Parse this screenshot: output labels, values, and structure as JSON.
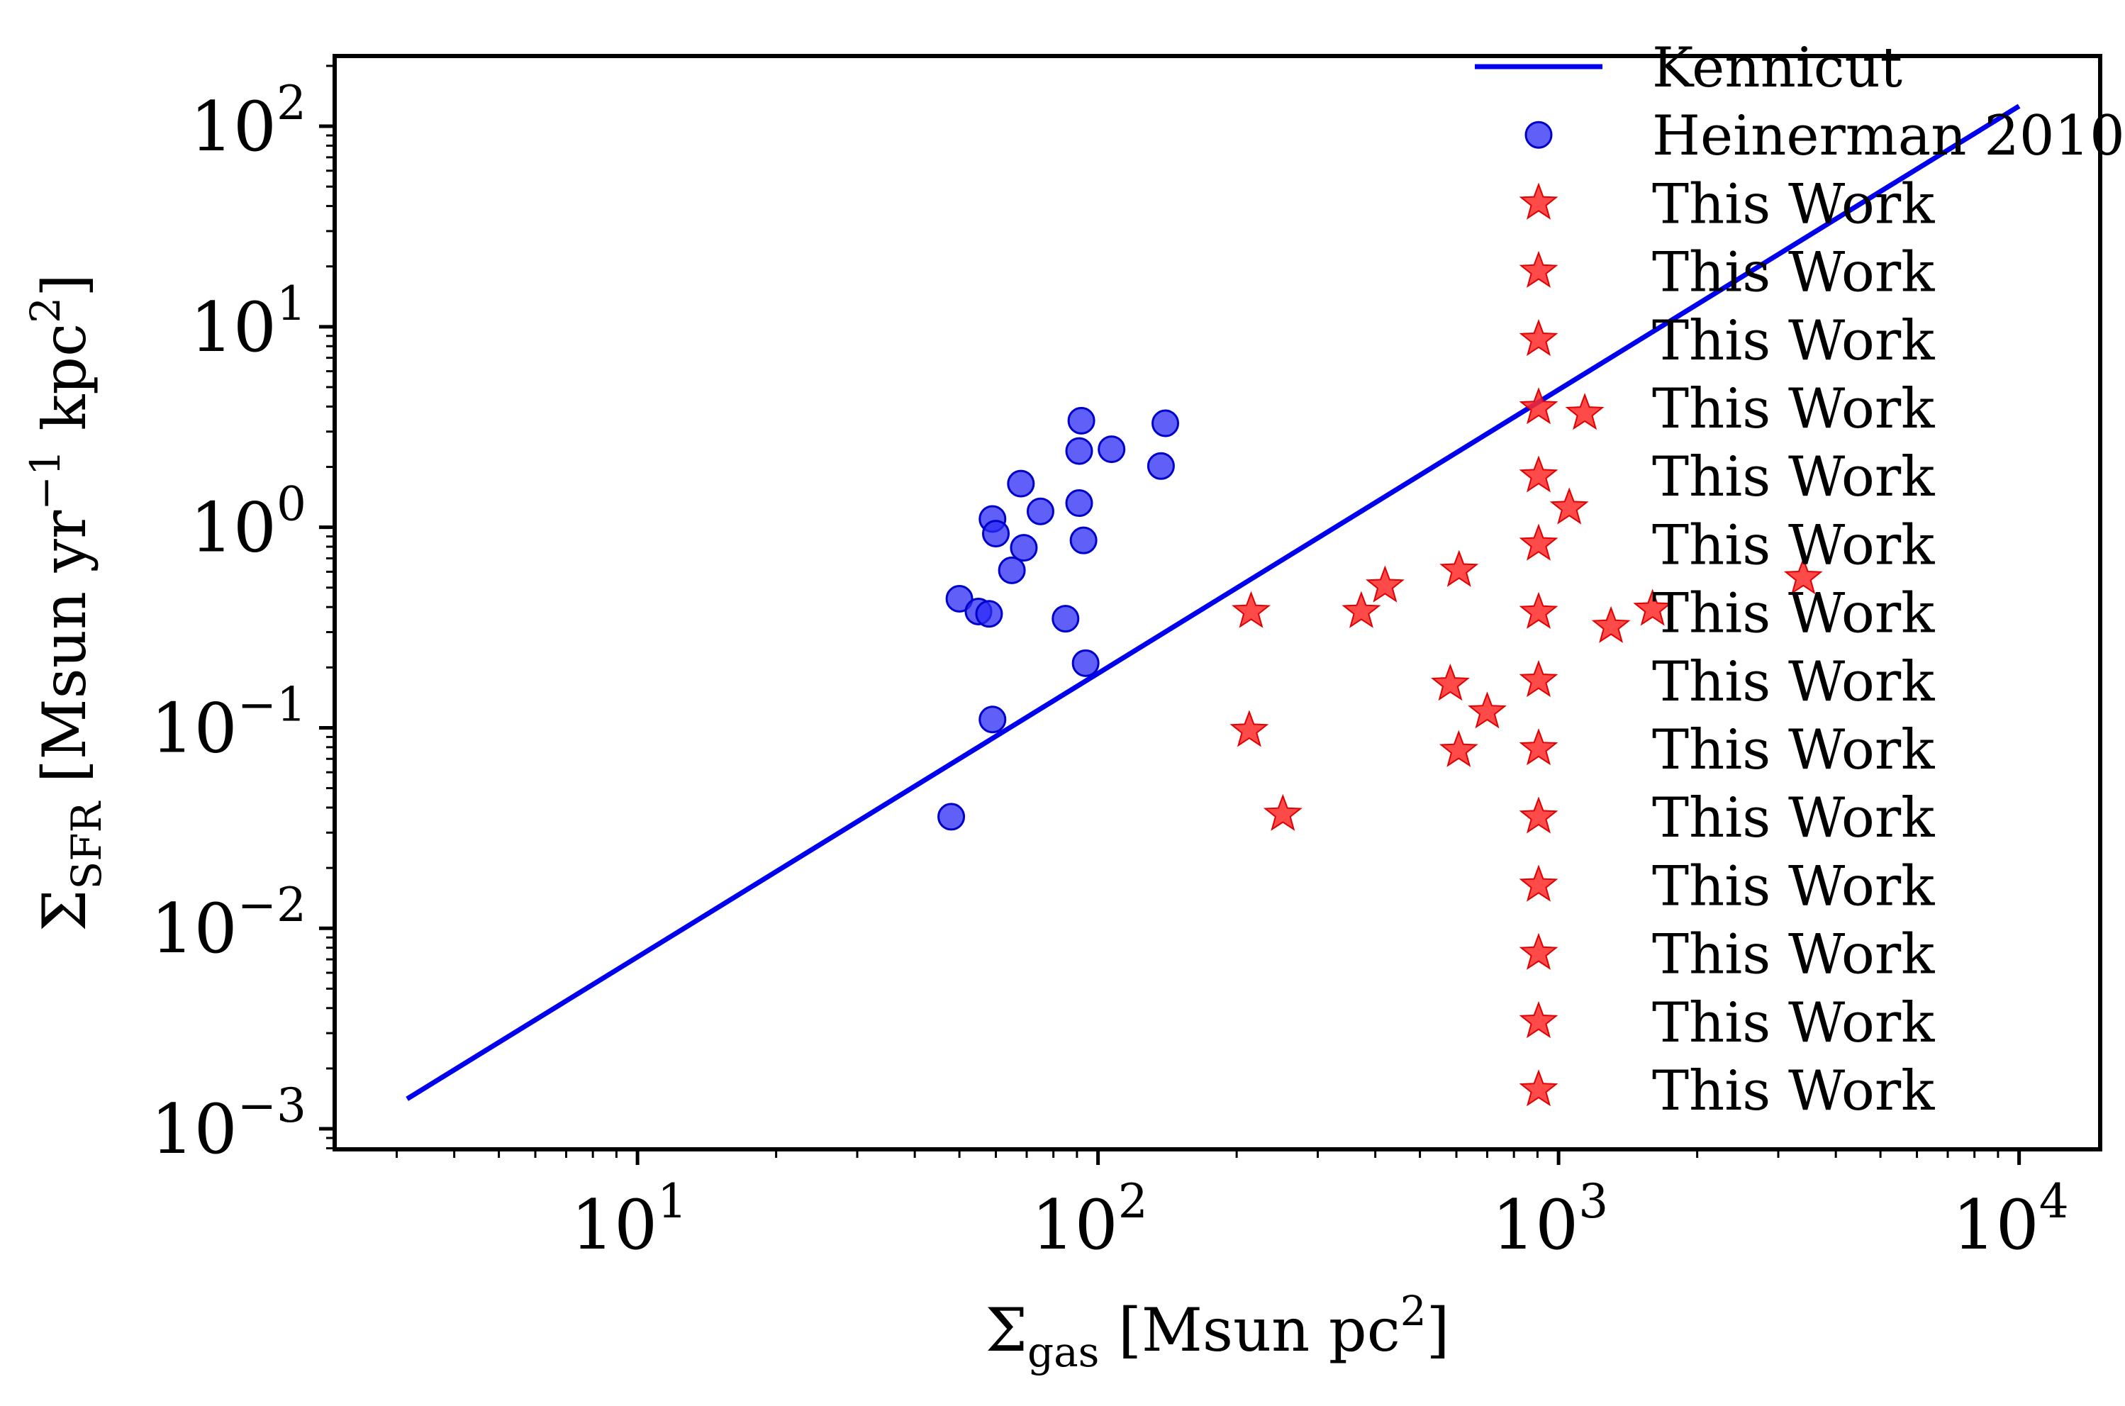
{
  "chart_data": {
    "type": "scatter",
    "x_scale": "log",
    "y_scale": "log",
    "xlim": [
      2.2,
      15000
    ],
    "ylim": [
      0.00079,
      224
    ],
    "xlabel": {
      "sym": "Σ",
      "sub": "gas",
      "rest": " [Msun pc",
      "sup": "2",
      "end": "]"
    },
    "ylabel": {
      "sym": "Σ",
      "sub": "SFR",
      "rest": " [Msun yr",
      "sup": "−1",
      "mid": " kpc",
      "sup2": "2",
      "end": "]"
    },
    "x_ticks": [
      {
        "value": 10,
        "base": "10",
        "exp": "1"
      },
      {
        "value": 100,
        "base": "10",
        "exp": "2"
      },
      {
        "value": 1000,
        "base": "10",
        "exp": "3"
      },
      {
        "value": 10000,
        "base": "10",
        "exp": "4"
      }
    ],
    "y_ticks": [
      {
        "value": 0.001,
        "base": "10",
        "exp": "−3"
      },
      {
        "value": 0.01,
        "base": "10",
        "exp": "−2"
      },
      {
        "value": 0.1,
        "base": "10",
        "exp": "−1"
      },
      {
        "value": 1,
        "base": "10",
        "exp": "0"
      },
      {
        "value": 10,
        "base": "10",
        "exp": "1"
      },
      {
        "value": 100,
        "base": "10",
        "exp": "2"
      }
    ],
    "grid": false,
    "legend_position": "top-right",
    "series": [
      {
        "name": "Kennicut",
        "kind": "line",
        "color": "#0000ee",
        "points": [
          [
            3.16,
            0.00141
          ],
          [
            10000,
            126
          ]
        ]
      },
      {
        "name": "Heinerman 2010",
        "kind": "scatter",
        "marker": "circle",
        "color": "#2b2bf5",
        "points": [
          [
            48,
            0.036
          ],
          [
            50,
            0.44
          ],
          [
            55,
            0.38
          ],
          [
            58,
            0.37
          ],
          [
            59,
            0.11
          ],
          [
            59,
            1.1
          ],
          [
            60,
            0.93
          ],
          [
            65,
            0.61
          ],
          [
            68,
            1.65
          ],
          [
            69,
            0.79
          ],
          [
            75,
            1.2
          ],
          [
            85,
            0.35
          ],
          [
            91,
            1.32
          ],
          [
            91,
            2.4
          ],
          [
            92,
            3.4
          ],
          [
            93,
            0.86
          ],
          [
            94,
            0.21
          ],
          [
            107,
            2.45
          ],
          [
            137,
            2.02
          ],
          [
            140,
            3.3
          ]
        ]
      }
    ],
    "this_work": {
      "name": "This Work",
      "marker": "star",
      "color": "#ff2a2a",
      "points": [
        [
          213,
          0.097
        ],
        [
          215,
          0.38
        ],
        [
          252,
          0.037
        ],
        [
          373,
          0.38
        ],
        [
          420,
          0.51
        ],
        [
          582,
          0.165
        ],
        [
          607,
          0.077
        ],
        [
          608,
          0.61
        ],
        [
          700,
          0.12
        ],
        [
          1055,
          1.25
        ],
        [
          1140,
          3.7
        ],
        [
          1300,
          0.32
        ],
        [
          1600,
          0.39
        ],
        [
          3400,
          0.56
        ]
      ]
    }
  }
}
